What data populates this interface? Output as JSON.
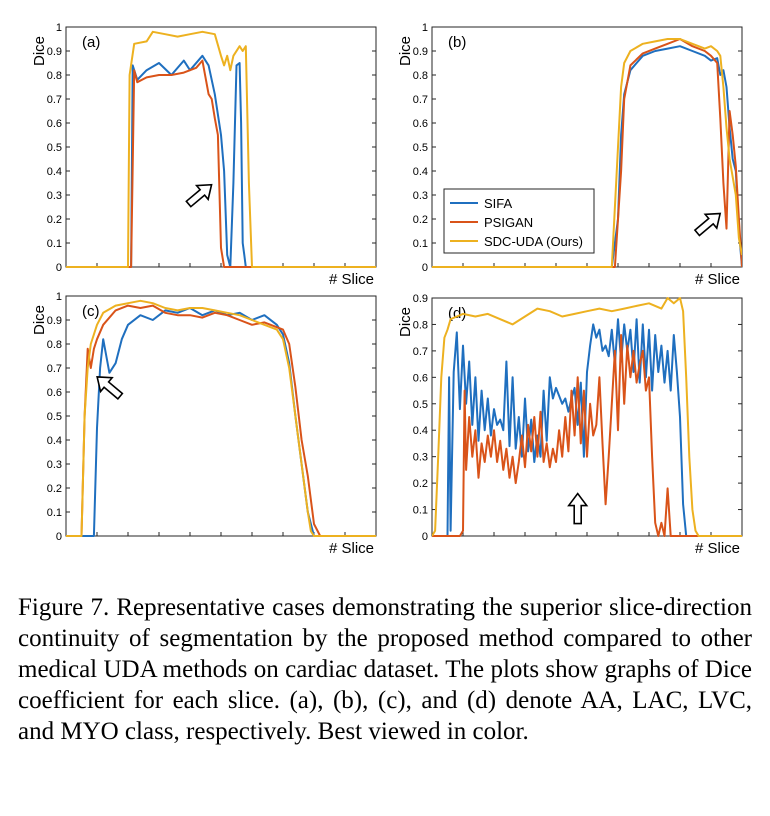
{
  "colors": {
    "SIFA": "#1f6fbf",
    "PSIGAN": "#d95319",
    "SDC-UDA (Ours)": "#edb120"
  },
  "legend": {
    "panel": "b",
    "placement": "bottom-left",
    "entries": [
      "SIFA",
      "PSIGAN",
      "SDC-UDA (Ours)"
    ]
  },
  "caption": "Figure 7. Representative cases demonstrating the superior slice-direction continuity of segmentation by the proposed method compared to other medical UDA methods on cardiac dataset. The plots show graphs of Dice coefficient for each slice. (a), (b), (c), and (d) denote AA, LAC, LVC, and MYO class, respectively. Best viewed in color.",
  "chart_data": [
    {
      "type": "line",
      "panel_label": "(a)",
      "xlabel": "# Slice",
      "ylabel": "Dice",
      "xlim": [
        0,
        100
      ],
      "ylim": [
        0,
        1
      ],
      "yticks": [
        "0",
        "0.1",
        "0.2",
        "0.3",
        "0.4",
        "0.5",
        "0.6",
        "0.7",
        "0.8",
        "0.9",
        "1"
      ],
      "grid": false,
      "arrow": {
        "x": 43,
        "y": 0.3,
        "direction": "up-right"
      },
      "series": [
        {
          "name": "SIFA",
          "x": [
            0,
            20,
            21,
            21.5,
            23,
            26,
            30,
            34,
            38,
            40,
            44,
            46,
            48,
            50,
            51,
            52,
            53,
            54,
            55,
            56,
            56.5,
            57,
            57.5,
            58,
            100
          ],
          "y": [
            0,
            0,
            0,
            0.84,
            0.78,
            0.82,
            0.85,
            0.8,
            0.86,
            0.82,
            0.88,
            0.84,
            0.72,
            0.55,
            0.4,
            0.05,
            0,
            0.35,
            0.84,
            0.85,
            0.6,
            0.1,
            0.05,
            0,
            0
          ]
        },
        {
          "name": "PSIGAN",
          "x": [
            0,
            21,
            22,
            23,
            26,
            30,
            34,
            38,
            42,
            44,
            46,
            47,
            48,
            49,
            50,
            51,
            52,
            100
          ],
          "y": [
            0,
            0,
            0.82,
            0.77,
            0.79,
            0.8,
            0.8,
            0.81,
            0.83,
            0.86,
            0.72,
            0.7,
            0.62,
            0.55,
            0.08,
            0,
            0,
            0
          ]
        },
        {
          "name": "SDC-UDA (Ours)",
          "x": [
            0,
            19,
            20,
            20.5,
            22,
            26,
            28,
            32,
            36,
            40,
            44,
            48,
            50,
            51,
            52,
            53,
            54,
            56,
            57,
            58,
            59,
            60,
            100
          ],
          "y": [
            0,
            0,
            0,
            0.8,
            0.93,
            0.94,
            0.98,
            0.97,
            0.96,
            0.97,
            0.98,
            0.97,
            0.88,
            0.84,
            0.88,
            0.82,
            0.88,
            0.92,
            0.9,
            0.92,
            0.35,
            0,
            0
          ]
        }
      ]
    },
    {
      "type": "line",
      "panel_label": "(b)",
      "xlabel": "# Slice",
      "ylabel": "Dice",
      "xlim": [
        0,
        100
      ],
      "ylim": [
        0,
        1
      ],
      "yticks": [
        "0",
        "0.1",
        "0.2",
        "0.3",
        "0.4",
        "0.5",
        "0.6",
        "0.7",
        "0.8",
        "0.9",
        "1"
      ],
      "grid": false,
      "arrow": {
        "x": 89,
        "y": 0.18,
        "direction": "up-right"
      },
      "series": [
        {
          "name": "SIFA",
          "x": [
            0,
            58,
            60,
            61,
            62,
            64,
            68,
            72,
            76,
            80,
            84,
            88,
            90,
            92,
            93,
            94,
            95,
            96,
            97,
            98,
            99,
            100
          ],
          "y": [
            0,
            0,
            0.2,
            0.55,
            0.72,
            0.82,
            0.88,
            0.9,
            0.91,
            0.92,
            0.9,
            0.88,
            0.86,
            0.87,
            0.8,
            0.82,
            0.75,
            0.58,
            0.45,
            0.4,
            0.15,
            0
          ]
        },
        {
          "name": "PSIGAN",
          "x": [
            0,
            59,
            61,
            62,
            64,
            68,
            72,
            76,
            80,
            84,
            88,
            90,
            92,
            93,
            94,
            95,
            96,
            97,
            98,
            99,
            100
          ],
          "y": [
            0,
            0,
            0.4,
            0.7,
            0.84,
            0.89,
            0.91,
            0.93,
            0.95,
            0.92,
            0.9,
            0.88,
            0.85,
            0.62,
            0.35,
            0.16,
            0.65,
            0.55,
            0.42,
            0.2,
            0
          ]
        },
        {
          "name": "SDC-UDA (Ours)",
          "x": [
            0,
            58,
            60,
            61,
            62,
            64,
            68,
            72,
            76,
            80,
            84,
            88,
            90,
            92,
            93,
            94,
            95,
            96,
            98,
            99,
            100
          ],
          "y": [
            0,
            0,
            0.5,
            0.75,
            0.85,
            0.9,
            0.93,
            0.94,
            0.95,
            0.95,
            0.93,
            0.91,
            0.92,
            0.9,
            0.88,
            0.75,
            0.58,
            0.45,
            0.3,
            0.12,
            0.05
          ]
        }
      ]
    },
    {
      "type": "line",
      "panel_label": "(c)",
      "xlabel": "# Slice",
      "ylabel": "Dice",
      "xlim": [
        0,
        100
      ],
      "ylim": [
        0,
        1
      ],
      "yticks": [
        "0",
        "0.1",
        "0.2",
        "0.3",
        "0.4",
        "0.5",
        "0.6",
        "0.7",
        "0.8",
        "0.9",
        "1"
      ],
      "grid": false,
      "arrow": {
        "x": 14,
        "y": 0.62,
        "direction": "up-left"
      },
      "series": [
        {
          "name": "SIFA",
          "x": [
            0,
            8,
            9,
            10,
            11,
            12,
            13,
            14,
            16,
            18,
            20,
            24,
            28,
            32,
            36,
            40,
            44,
            48,
            52,
            56,
            60,
            64,
            68,
            70,
            72,
            74,
            76,
            78,
            80,
            82,
            84,
            100
          ],
          "y": [
            0,
            0,
            0,
            0.45,
            0.7,
            0.82,
            0.75,
            0.68,
            0.72,
            0.82,
            0.88,
            0.92,
            0.9,
            0.94,
            0.93,
            0.95,
            0.92,
            0.94,
            0.92,
            0.93,
            0.9,
            0.92,
            0.88,
            0.84,
            0.72,
            0.5,
            0.3,
            0.1,
            0,
            0,
            0,
            0
          ]
        },
        {
          "name": "PSIGAN",
          "x": [
            0,
            5,
            6,
            7,
            8,
            9,
            10,
            12,
            16,
            20,
            24,
            28,
            32,
            36,
            40,
            44,
            48,
            52,
            56,
            60,
            64,
            68,
            70,
            72,
            74,
            76,
            78,
            80,
            82,
            84,
            100
          ],
          "y": [
            0,
            0,
            0.5,
            0.78,
            0.7,
            0.78,
            0.82,
            0.88,
            0.94,
            0.96,
            0.95,
            0.96,
            0.93,
            0.92,
            0.92,
            0.91,
            0.93,
            0.92,
            0.9,
            0.88,
            0.89,
            0.87,
            0.86,
            0.8,
            0.62,
            0.4,
            0.25,
            0.05,
            0,
            0,
            0
          ]
        },
        {
          "name": "SDC-UDA (Ours)",
          "x": [
            0,
            5,
            6,
            7,
            8,
            10,
            12,
            16,
            20,
            24,
            28,
            32,
            36,
            40,
            44,
            48,
            52,
            56,
            60,
            64,
            68,
            70,
            72,
            74,
            76,
            78,
            79,
            80,
            100
          ],
          "y": [
            0,
            0,
            0.5,
            0.7,
            0.8,
            0.88,
            0.93,
            0.96,
            0.97,
            0.98,
            0.97,
            0.95,
            0.94,
            0.95,
            0.95,
            0.94,
            0.93,
            0.92,
            0.9,
            0.88,
            0.86,
            0.82,
            0.7,
            0.5,
            0.3,
            0.1,
            0.02,
            0,
            0
          ]
        }
      ]
    },
    {
      "type": "line",
      "panel_label": "(d)",
      "xlabel": "# Slice",
      "ylabel": "Dice",
      "xlim": [
        0,
        100
      ],
      "ylim": [
        0,
        0.9
      ],
      "yticks": [
        "0",
        "0.1",
        "0.2",
        "0.3",
        "0.4",
        "0.5",
        "0.6",
        "0.7",
        "0.8",
        "0.9"
      ],
      "grid": false,
      "arrow": {
        "x": 47,
        "y": 0.1,
        "direction": "up"
      },
      "series": [
        {
          "name": "SIFA",
          "x": [
            0,
            4,
            5,
            5.5,
            6,
            7,
            8,
            9,
            10,
            11,
            12,
            13,
            14,
            15,
            16,
            17,
            18,
            19,
            20,
            21,
            22,
            23,
            24,
            25,
            26,
            27,
            28,
            29,
            30,
            31,
            32,
            33,
            34,
            35,
            36,
            37,
            38,
            39,
            40,
            41,
            42,
            43,
            44,
            45,
            46,
            47,
            48,
            49,
            50,
            51,
            52,
            53,
            54,
            55,
            56,
            57,
            58,
            59,
            60,
            61,
            62,
            63,
            64,
            65,
            66,
            67,
            68,
            69,
            70,
            71,
            72,
            73,
            74,
            75,
            76,
            77,
            78,
            79,
            80,
            81,
            82,
            83,
            84,
            85,
            100
          ],
          "y": [
            0,
            0,
            0,
            0.6,
            0.02,
            0.62,
            0.77,
            0.48,
            0.72,
            0.5,
            0.66,
            0.42,
            0.6,
            0.36,
            0.55,
            0.4,
            0.52,
            0.38,
            0.48,
            0.42,
            0.44,
            0.4,
            0.66,
            0.34,
            0.6,
            0.33,
            0.45,
            0.3,
            0.52,
            0.32,
            0.44,
            0.28,
            0.38,
            0.3,
            0.55,
            0.36,
            0.6,
            0.52,
            0.56,
            0.53,
            0.5,
            0.52,
            0.47,
            0.52,
            0.56,
            0.42,
            0.58,
            0.3,
            0.62,
            0.72,
            0.8,
            0.75,
            0.78,
            0.7,
            0.72,
            0.68,
            0.78,
            0.65,
            0.82,
            0.66,
            0.8,
            0.7,
            0.78,
            0.62,
            0.82,
            0.58,
            0.8,
            0.6,
            0.78,
            0.55,
            0.76,
            0.62,
            0.72,
            0.58,
            0.7,
            0.55,
            0.76,
            0.62,
            0.45,
            0.12,
            0,
            0,
            0,
            0,
            0
          ]
        },
        {
          "name": "PSIGAN",
          "x": [
            0,
            9,
            10,
            10.5,
            11,
            12,
            13,
            14,
            15,
            16,
            17,
            18,
            19,
            20,
            21,
            22,
            23,
            24,
            25,
            26,
            27,
            28,
            29,
            30,
            31,
            32,
            33,
            34,
            35,
            36,
            37,
            38,
            39,
            40,
            41,
            42,
            43,
            44,
            45,
            46,
            47,
            48,
            49,
            50,
            51,
            52,
            53,
            54,
            55,
            56,
            57,
            58,
            59,
            60,
            61,
            62,
            63,
            64,
            65,
            66,
            67,
            68,
            69,
            70,
            71,
            72,
            73,
            74,
            75,
            76,
            77,
            78,
            79,
            80,
            81,
            100
          ],
          "y": [
            0,
            0,
            0.02,
            0.55,
            0.25,
            0.45,
            0.3,
            0.4,
            0.22,
            0.35,
            0.28,
            0.38,
            0.3,
            0.4,
            0.28,
            0.36,
            0.25,
            0.33,
            0.22,
            0.3,
            0.2,
            0.28,
            0.38,
            0.26,
            0.42,
            0.32,
            0.45,
            0.3,
            0.47,
            0.28,
            0.35,
            0.26,
            0.33,
            0.28,
            0.4,
            0.3,
            0.45,
            0.32,
            0.55,
            0.38,
            0.6,
            0.35,
            0.55,
            0.3,
            0.5,
            0.38,
            0.42,
            0.6,
            0.35,
            0.12,
            0.3,
            0.5,
            0.7,
            0.4,
            0.76,
            0.5,
            0.72,
            0.6,
            0.7,
            0.58,
            0.65,
            0.7,
            0.55,
            0.6,
            0.3,
            0.05,
            0,
            0.05,
            0,
            0.18,
            0,
            0,
            0,
            0,
            0,
            0
          ]
        },
        {
          "name": "SDC-UDA (Ours)",
          "x": [
            0,
            1,
            2,
            3,
            4,
            5,
            6,
            8,
            10,
            14,
            18,
            22,
            26,
            30,
            34,
            38,
            42,
            46,
            50,
            54,
            58,
            62,
            66,
            70,
            74,
            76,
            78,
            80,
            81,
            82,
            83,
            84,
            85,
            86,
            87,
            88,
            100
          ],
          "y": [
            0,
            0.02,
            0.3,
            0.6,
            0.75,
            0.78,
            0.82,
            0.83,
            0.84,
            0.83,
            0.84,
            0.82,
            0.8,
            0.83,
            0.86,
            0.85,
            0.83,
            0.84,
            0.85,
            0.86,
            0.85,
            0.86,
            0.87,
            0.88,
            0.86,
            0.9,
            0.88,
            0.9,
            0.85,
            0.6,
            0.3,
            0.1,
            0.02,
            0,
            0,
            0,
            0
          ]
        }
      ]
    }
  ]
}
